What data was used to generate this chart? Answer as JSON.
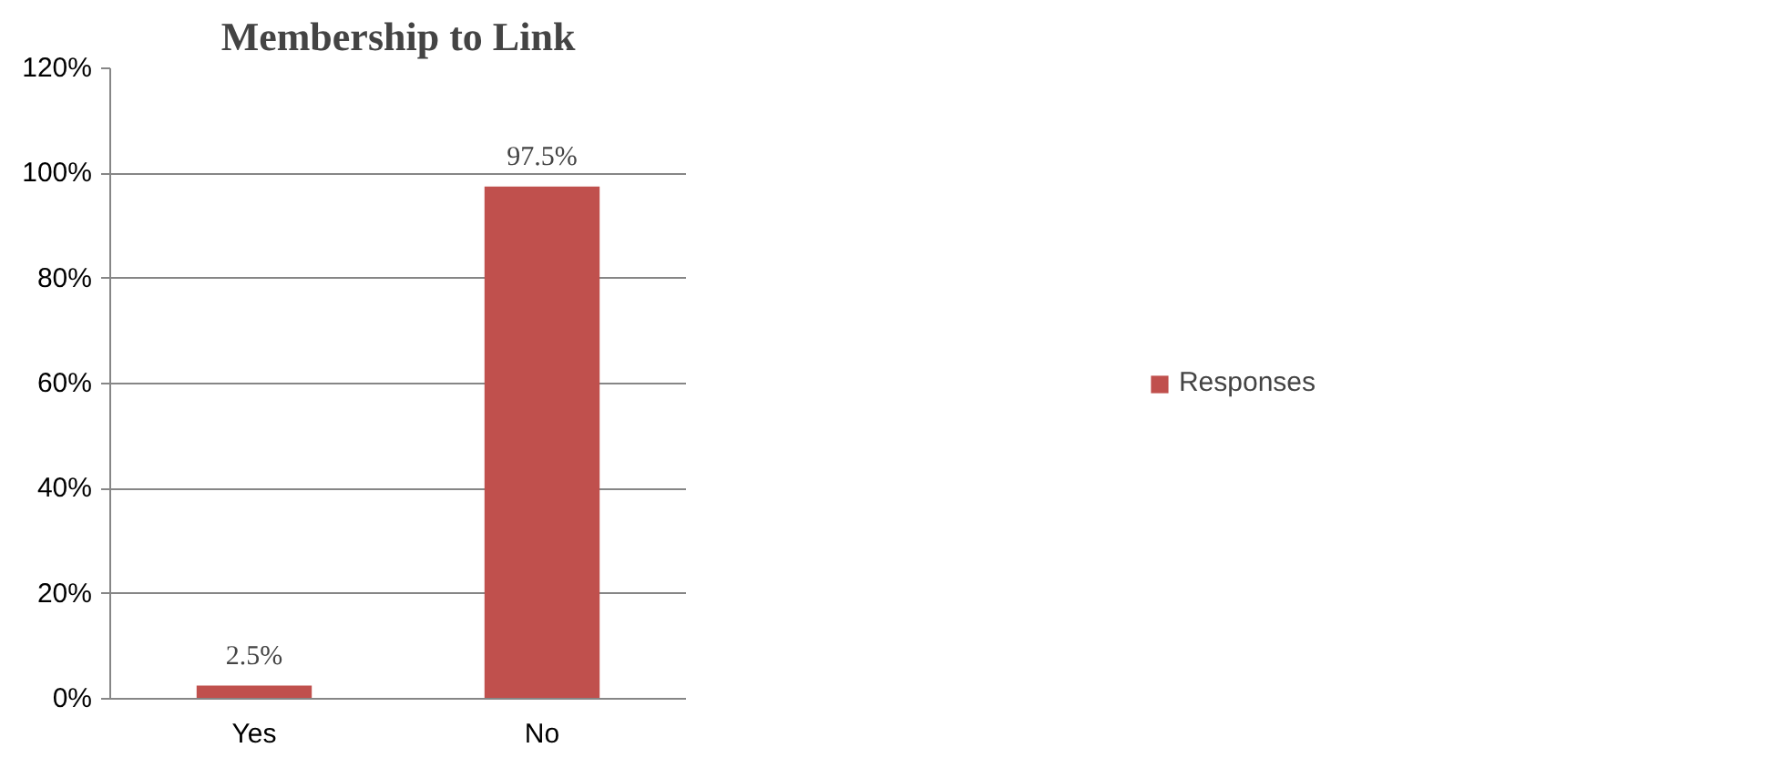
{
  "chart_data": {
    "type": "bar",
    "title": "Membership to Link",
    "categories": [
      "Yes",
      "No"
    ],
    "series": [
      {
        "name": "Responses",
        "color": "#c0504d",
        "values": [
          2.5,
          97.5
        ],
        "value_labels": [
          "2.5%",
          "97.5%"
        ]
      }
    ],
    "ylim": [
      0,
      120
    ],
    "yticks": [
      {
        "value": 0,
        "label": "0%"
      },
      {
        "value": 20,
        "label": "20%"
      },
      {
        "value": 40,
        "label": "40%"
      },
      {
        "value": 60,
        "label": "60%"
      },
      {
        "value": 80,
        "label": "80%"
      },
      {
        "value": 100,
        "label": "100%"
      },
      {
        "value": 120,
        "label": "120%"
      }
    ],
    "grid": "y",
    "legend": "right"
  }
}
